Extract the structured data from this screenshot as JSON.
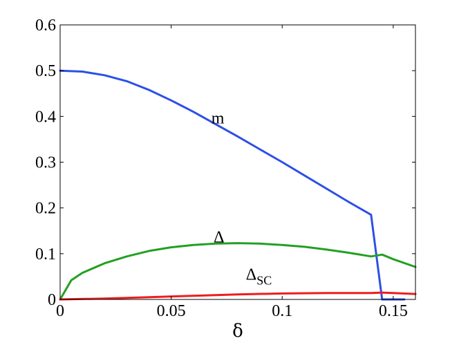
{
  "chart_data": {
    "type": "line",
    "title": "",
    "xlabel": "δ",
    "ylabel": "",
    "xlim": [
      0,
      0.16
    ],
    "ylim": [
      0,
      0.6
    ],
    "grid": false,
    "legend": "none",
    "xticks": [
      0,
      0.05,
      0.1,
      0.15
    ],
    "xtick_labels": [
      "0",
      "0.05",
      "0.1",
      "0.15"
    ],
    "yticks": [
      0,
      0.1,
      0.2,
      0.3,
      0.4,
      0.5,
      0.6
    ],
    "ytick_labels": [
      "0",
      "0.1",
      "0.2",
      "0.3",
      "0.4",
      "0.5",
      "0.6"
    ],
    "series": [
      {
        "color": "#2b4fe8",
        "x": [
          0,
          0.01,
          0.02,
          0.03,
          0.04,
          0.05,
          0.06,
          0.07,
          0.08,
          0.09,
          0.1,
          0.11,
          0.12,
          0.13,
          0.14,
          0.145,
          0.15,
          0.155
        ],
        "y": [
          0.5,
          0.498,
          0.49,
          0.477,
          0.458,
          0.435,
          0.41,
          0.383,
          0.356,
          0.328,
          0.3,
          0.271,
          0.242,
          0.213,
          0.185,
          0.0,
          0.0,
          0.0
        ]
      },
      {
        "color": "#22a022",
        "x": [
          0,
          0.005,
          0.01,
          0.02,
          0.03,
          0.04,
          0.05,
          0.06,
          0.07,
          0.08,
          0.09,
          0.1,
          0.11,
          0.12,
          0.13,
          0.14,
          0.145,
          0.15,
          0.16
        ],
        "y": [
          0.0,
          0.042,
          0.058,
          0.079,
          0.094,
          0.106,
          0.114,
          0.119,
          0.122,
          0.123,
          0.122,
          0.119,
          0.115,
          0.109,
          0.102,
          0.094,
          0.098,
          0.088,
          0.071
        ]
      },
      {
        "color": "#ee1c1c",
        "x": [
          0,
          0.02,
          0.04,
          0.06,
          0.08,
          0.1,
          0.12,
          0.14,
          0.145,
          0.15,
          0.16
        ],
        "y": [
          0.0,
          0.002,
          0.005,
          0.008,
          0.011,
          0.013,
          0.014,
          0.014,
          0.015,
          0.014,
          0.012
        ]
      }
    ],
    "annotations": [
      {
        "text": "m",
        "sub": "",
        "x": 0.071,
        "y": 0.385
      },
      {
        "text": "Δ",
        "sub": "",
        "x": 0.0715,
        "y": 0.125
      },
      {
        "text": "Δ",
        "sub": "SC",
        "x": 0.0895,
        "y": 0.043
      }
    ]
  }
}
